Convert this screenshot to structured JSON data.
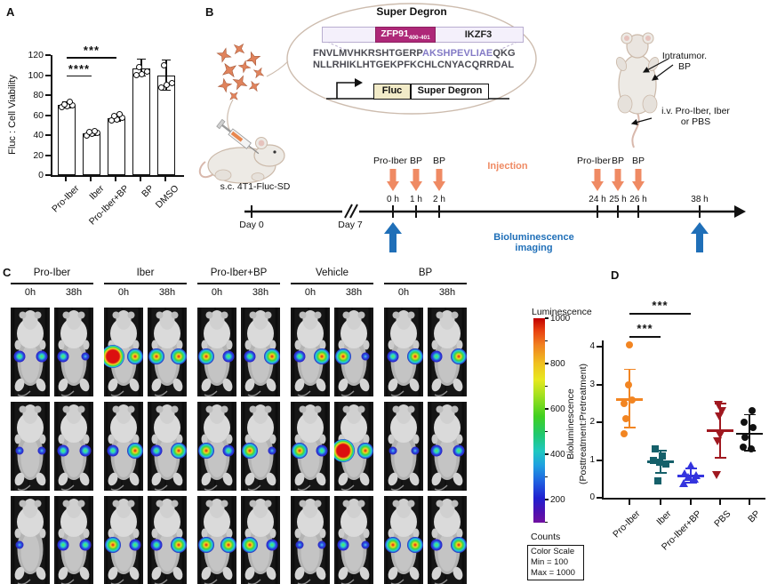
{
  "figure": {
    "background": "#ffffff"
  },
  "panelA": {
    "label": "A",
    "ylabel": "Fluc : Cell Viability",
    "yticks": [
      0,
      20,
      40,
      60,
      80,
      100,
      120
    ],
    "categories": [
      "Pro-Iber",
      "Iber",
      "Pro-Iber+BP",
      "BP",
      "DMSO"
    ],
    "values": [
      70,
      42,
      57,
      107,
      100
    ],
    "err_low": [
      67,
      40,
      54,
      99,
      85
    ],
    "err_high": [
      73,
      44,
      61,
      116,
      115
    ],
    "points": [
      [
        68,
        69,
        70,
        71,
        73
      ],
      [
        40,
        41,
        42,
        43,
        44
      ],
      [
        55,
        56,
        57,
        59,
        61
      ],
      [
        100,
        101,
        104,
        108
      ],
      [
        88,
        90,
        92,
        110
      ]
    ],
    "significance": [
      {
        "from": 0,
        "to": 2,
        "y": 118,
        "stars": "***"
      },
      {
        "from": 0,
        "to": 1,
        "y": 100,
        "stars": "****"
      }
    ]
  },
  "panelB": {
    "label": "B",
    "construct_title": "Super Degron",
    "zfp91_label": "ZFP91",
    "zfp91_subscript": "400-401",
    "ikzf3_label": "IKZF3",
    "seq_line1_pre": "FNVLMVHKRSHTGERP",
    "seq_line1_highlight": "AKSHPEVLIAE",
    "seq_line1_post": "QKG",
    "seq_line2": "NLLRHIKLHTGEKPFKCHLCNYACQRRDAL",
    "fluc_box": "Fluc",
    "super_degron_box": "Super Degron",
    "sc_injection_label": "s.c. 4T1-Fluc-SD",
    "day0": "Day 0",
    "day7": "Day 7",
    "left_events": [
      {
        "drug": "Pro-Iber",
        "time": "0 h"
      },
      {
        "drug": "BP",
        "time": "1 h"
      },
      {
        "drug": "BP",
        "time": "2 h"
      }
    ],
    "right_events": [
      {
        "drug": "Pro-Iber",
        "time": "24 h"
      },
      {
        "drug": "BP",
        "time": "25 h"
      },
      {
        "drug": "BP",
        "time": "26 h"
      }
    ],
    "end_time": "38 h",
    "injection_label": "Injection",
    "imaging_label": "Bioluminescence imaging",
    "intratumor_line1": "Intratumor.",
    "intratumor_line2": "BP",
    "iv_line1": "i.v. Pro-Iber, Iber",
    "iv_line2": "or PBS",
    "colors": {
      "injection_orange": "#ef8a63",
      "imaging_blue": "#1f6fb8",
      "zfp91_magenta": "#ae2878",
      "seq_highlight": "#837ac6"
    }
  },
  "panelC": {
    "label": "C",
    "groups": [
      "Pro-Iber",
      "Iber",
      "Pro-Iber+BP",
      "Vehicle",
      "BP"
    ],
    "col_labels": [
      "0h",
      "38h"
    ],
    "rows": 3,
    "tiles": [
      [
        [
          2,
          2
        ],
        [
          2,
          1
        ],
        [
          4,
          3
        ],
        [
          3,
          3
        ],
        [
          3,
          2
        ],
        [
          2,
          3
        ],
        [
          2,
          3
        ],
        [
          3,
          1
        ],
        [
          2,
          3
        ],
        [
          2,
          3
        ]
      ],
      [
        [
          1,
          1
        ],
        [
          2,
          2
        ],
        [
          2,
          3
        ],
        [
          2,
          3
        ],
        [
          3,
          2
        ],
        [
          3,
          1
        ],
        [
          3,
          2
        ],
        [
          4,
          3
        ],
        [
          1,
          1
        ],
        [
          2,
          2
        ]
      ],
      [
        [
          1,
          0
        ],
        [
          2,
          2
        ],
        [
          3,
          2
        ],
        [
          2,
          3
        ],
        [
          3,
          3
        ],
        [
          3,
          2
        ],
        [
          1,
          1
        ],
        [
          2,
          1
        ],
        [
          3,
          3
        ],
        [
          2,
          3
        ]
      ]
    ],
    "colorbar": {
      "title": "Luminescence",
      "ticks": [
        "1000",
        "800",
        "600",
        "400",
        "200"
      ],
      "counts_label": "Counts",
      "scale_box_lines": [
        "Color Scale",
        "Min = 100",
        "Max = 1000"
      ]
    }
  },
  "panelD": {
    "label": "D",
    "ylabel_line1": "Bioluminescence",
    "ylabel_line2": "(Posttreatment:Pretreatment)",
    "yticks": [
      0,
      1,
      2,
      3,
      4
    ],
    "groups": [
      {
        "label": "Pro-Iber",
        "color": "#f28522",
        "marker": "circle",
        "values": [
          4.05,
          3.0,
          2.6,
          2.5,
          2.1,
          1.7
        ],
        "mean": 2.6,
        "sd_low": 1.85,
        "sd_high": 3.4
      },
      {
        "label": "Iber",
        "color": "#15606a",
        "marker": "square",
        "values": [
          1.3,
          1.1,
          1.0,
          0.95,
          0.9,
          0.45
        ],
        "mean": 0.95,
        "sd_low": 0.65,
        "sd_high": 1.25
      },
      {
        "label": "Pro-Iber+BP",
        "color": "#3434de",
        "marker": "triangle-up",
        "values": [
          0.85,
          0.65,
          0.6,
          0.55,
          0.5,
          0.4
        ],
        "mean": 0.58,
        "sd_low": 0.4,
        "sd_high": 0.78
      },
      {
        "label": "PBS",
        "color": "#a01820",
        "marker": "triangle-down",
        "values": [
          2.45,
          2.3,
          2.15,
          1.65,
          1.5,
          0.6
        ],
        "mean": 1.78,
        "sd_low": 1.05,
        "sd_high": 2.5
      },
      {
        "label": "BP",
        "color": "#111111",
        "marker": "circle",
        "values": [
          2.3,
          2.0,
          1.85,
          1.6,
          1.35,
          1.3
        ],
        "mean": 1.7,
        "sd_low": 1.25,
        "sd_high": 2.2
      }
    ],
    "significance": [
      {
        "from": 0,
        "to": 1,
        "y": 4.28,
        "stars": "***"
      },
      {
        "from": 0,
        "to": 2,
        "y": 4.9,
        "stars": "***"
      }
    ]
  },
  "chart_data": [
    {
      "type": "bar",
      "title": "Panel A",
      "categories": [
        "Pro-Iber",
        "Iber",
        "Pro-Iber+BP",
        "BP",
        "DMSO"
      ],
      "values": [
        70,
        42,
        57,
        107,
        100
      ],
      "xlabel": "",
      "ylabel": "Fluc : Cell Viability",
      "ylim": [
        0,
        120
      ],
      "annotations": [
        "*** Pro-Iber vs Pro-Iber+BP",
        "**** Pro-Iber vs Iber"
      ]
    },
    {
      "type": "scatter",
      "title": "Panel D",
      "categories": [
        "Pro-Iber",
        "Iber",
        "Pro-Iber+BP",
        "PBS",
        "BP"
      ],
      "series": [
        {
          "name": "Pro-Iber",
          "values": [
            4.05,
            3.0,
            2.6,
            2.5,
            2.1,
            1.7
          ]
        },
        {
          "name": "Iber",
          "values": [
            1.3,
            1.1,
            1.0,
            0.95,
            0.9,
            0.45
          ]
        },
        {
          "name": "Pro-Iber+BP",
          "values": [
            0.85,
            0.65,
            0.6,
            0.55,
            0.5,
            0.4
          ]
        },
        {
          "name": "PBS",
          "values": [
            2.45,
            2.3,
            2.15,
            1.65,
            1.5,
            0.6
          ]
        },
        {
          "name": "BP",
          "values": [
            2.3,
            2.0,
            1.85,
            1.6,
            1.35,
            1.3
          ]
        }
      ],
      "xlabel": "",
      "ylabel": "Bioluminescence (Posttreatment:Pretreatment)",
      "ylim": [
        0,
        4.2
      ],
      "annotations": [
        "*** Pro-Iber vs Iber",
        "*** Pro-Iber vs Pro-Iber+BP"
      ]
    }
  ]
}
